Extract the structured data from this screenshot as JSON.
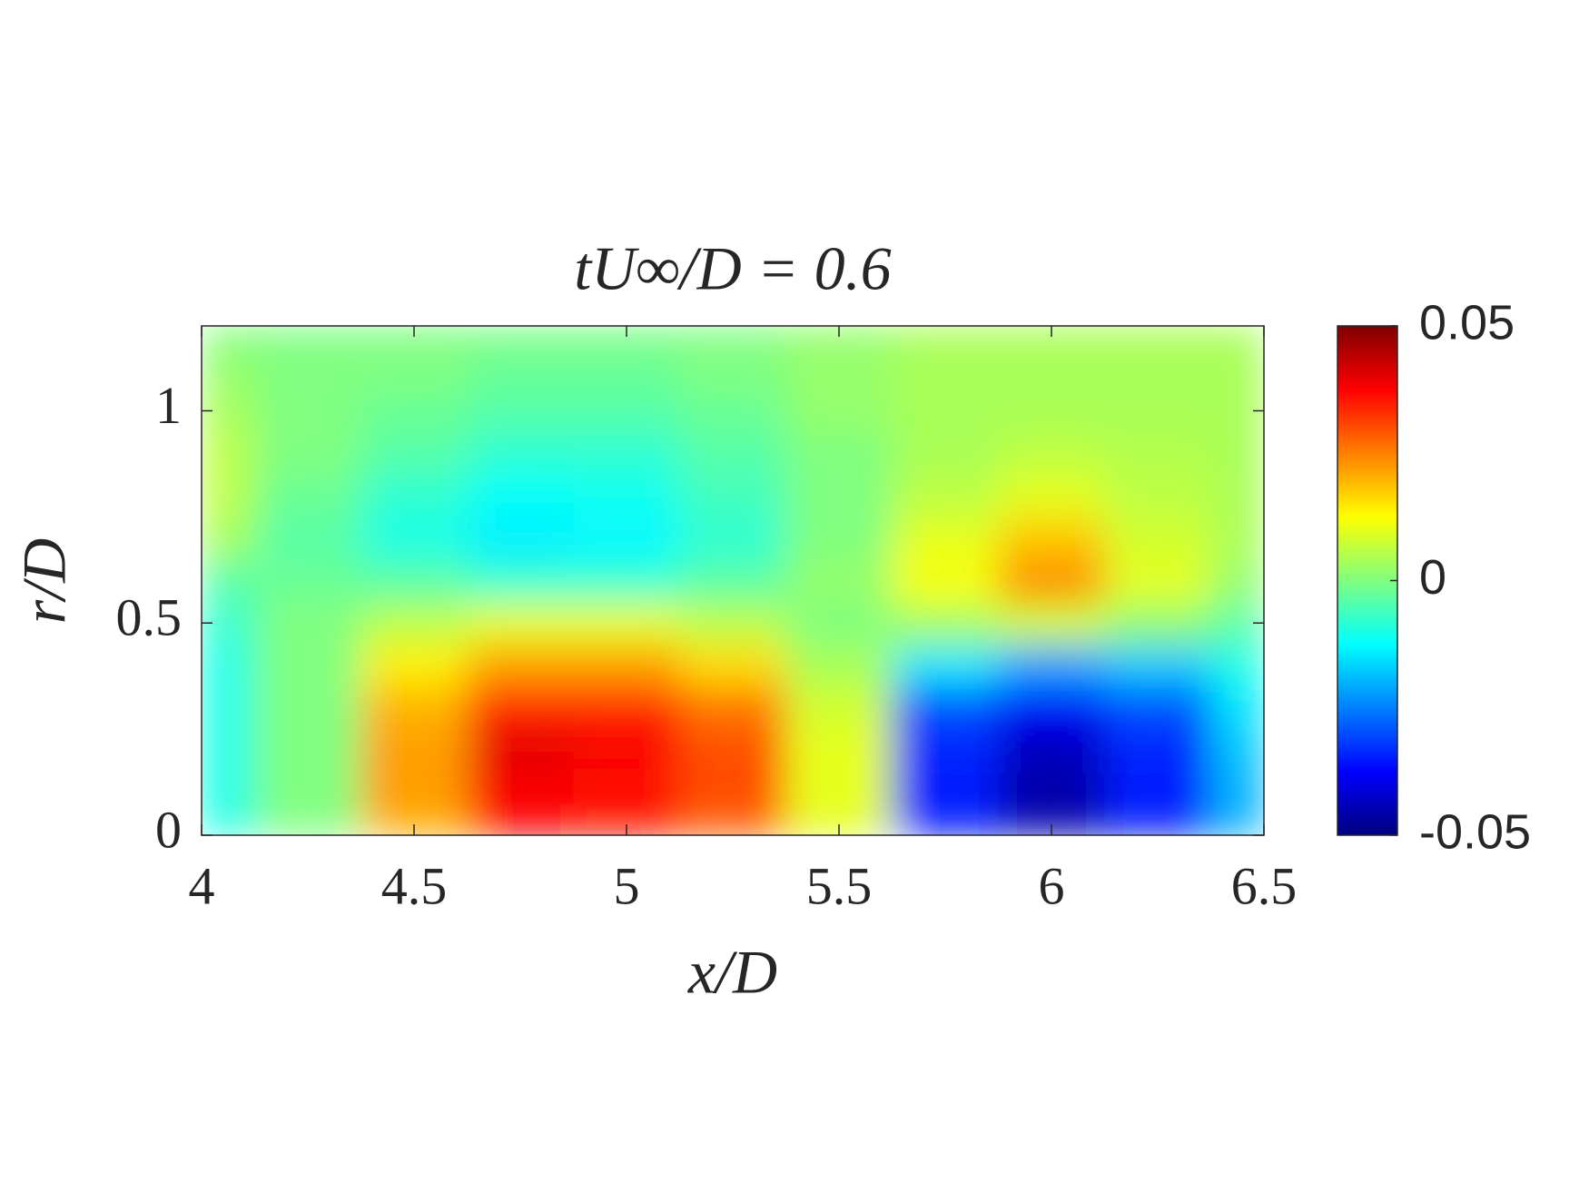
{
  "chart_data": {
    "type": "contour",
    "title": "tU∞/D = 0.6",
    "xlabel": "x/D",
    "ylabel": "r/D",
    "x": [
      4,
      4.25,
      4.5,
      4.75,
      5,
      5.25,
      5.5,
      5.75,
      6,
      6.25,
      6.5
    ],
    "y": [
      0,
      0.1,
      0.2,
      0.3,
      0.4,
      0.5,
      0.6,
      0.7,
      0.8,
      0.9,
      1.0,
      1.1,
      1.2
    ],
    "z": [
      [
        -0.01,
        0.0,
        0.02,
        0.036,
        0.035,
        0.028,
        0.01,
        -0.035,
        -0.045,
        -0.035,
        -0.02
      ],
      [
        -0.01,
        0.0,
        0.022,
        0.038,
        0.036,
        0.03,
        0.01,
        -0.035,
        -0.046,
        -0.035,
        -0.02
      ],
      [
        -0.01,
        0.0,
        0.022,
        0.04,
        0.038,
        0.03,
        0.01,
        -0.034,
        -0.044,
        -0.034,
        -0.018
      ],
      [
        -0.01,
        0.0,
        0.02,
        0.034,
        0.034,
        0.026,
        0.008,
        -0.03,
        -0.038,
        -0.03,
        -0.015
      ],
      [
        -0.01,
        0.0,
        0.014,
        0.022,
        0.022,
        0.016,
        0.004,
        -0.015,
        -0.022,
        -0.018,
        -0.01
      ],
      [
        -0.008,
        0.0,
        0.006,
        0.01,
        0.01,
        0.006,
        0.0,
        0.004,
        0.008,
        0.002,
        -0.004
      ],
      [
        -0.004,
        -0.002,
        -0.004,
        -0.008,
        -0.008,
        -0.004,
        0.002,
        0.012,
        0.024,
        0.01,
        0.002
      ],
      [
        0.004,
        -0.004,
        -0.01,
        -0.014,
        -0.013,
        -0.008,
        0.0,
        0.01,
        0.018,
        0.008,
        0.004
      ],
      [
        0.006,
        -0.002,
        -0.008,
        -0.012,
        -0.011,
        -0.006,
        0.0,
        0.006,
        0.01,
        0.006,
        0.004
      ],
      [
        0.006,
        0.0,
        -0.004,
        -0.008,
        -0.008,
        -0.004,
        0.0,
        0.004,
        0.006,
        0.005,
        0.004
      ],
      [
        0.004,
        0.0,
        -0.002,
        -0.004,
        -0.004,
        -0.002,
        0.002,
        0.004,
        0.004,
        0.004,
        0.004
      ],
      [
        0.002,
        0.0,
        0.0,
        -0.002,
        -0.002,
        0.0,
        0.002,
        0.004,
        0.004,
        0.004,
        0.004
      ],
      [
        0.0,
        0.0,
        0.0,
        0.0,
        0.0,
        0.0,
        0.002,
        0.004,
        0.004,
        0.004,
        0.004
      ]
    ],
    "colormap": "jet",
    "clim": [
      -0.05,
      0.05
    ],
    "colorbar_ticks": [
      {
        "value": -0.05,
        "label": "-0.05"
      },
      0,
      0.05
    ],
    "xlim": [
      4,
      6.5
    ],
    "xticks": [
      4,
      4.5,
      5,
      5.5,
      6,
      6.5
    ],
    "ylim": [
      0,
      1.2
    ],
    "yticks": [
      0,
      0.5,
      1
    ]
  }
}
